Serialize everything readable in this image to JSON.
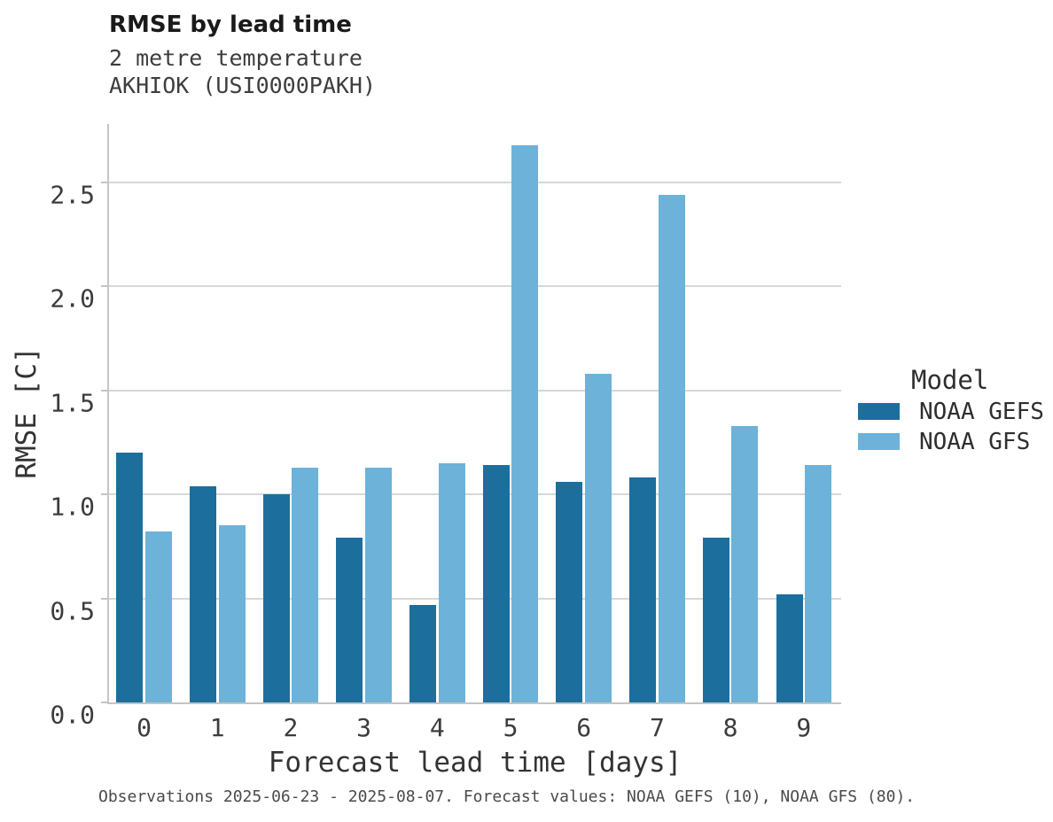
{
  "header": {
    "title": "RMSE by lead time",
    "subtitle_line1": "2 metre temperature",
    "subtitle_line2": "AKHIOK (USI0000PAKH)"
  },
  "chart_data": {
    "type": "bar",
    "title": "RMSE by lead time",
    "subtitle": "2 metre temperature — AKHIOK (USI0000PAKH)",
    "categories": [
      "0",
      "1",
      "2",
      "3",
      "4",
      "5",
      "6",
      "7",
      "8",
      "9"
    ],
    "series": [
      {
        "name": "NOAA GEFS",
        "color": "#1C6E9D",
        "values": [
          1.2,
          1.04,
          1.0,
          0.79,
          0.47,
          1.14,
          1.06,
          1.08,
          0.79,
          0.52
        ]
      },
      {
        "name": "NOAA GFS",
        "color": "#6CB2D9",
        "values": [
          0.82,
          0.85,
          1.13,
          1.13,
          1.15,
          2.68,
          1.58,
          2.44,
          1.33,
          1.14
        ]
      }
    ],
    "xlabel": "Forecast lead time [days]",
    "ylabel": "RMSE [C]",
    "ylim": [
      0,
      2.78
    ],
    "yticks": [
      0.0,
      0.5,
      1.0,
      1.5,
      2.0,
      2.5
    ],
    "grid": true,
    "legend_position": "right"
  },
  "legend": {
    "title": "Model",
    "items": [
      {
        "label": "NOAA GEFS",
        "color": "#1C6E9D"
      },
      {
        "label": "NOAA GFS",
        "color": "#6CB2D9"
      }
    ]
  },
  "footer": {
    "note": "Observations 2025-06-23 - 2025-08-07. Forecast values: NOAA GEFS (10), NOAA GFS (80)."
  },
  "colors": {
    "gridline": "#d7d7d7",
    "axis": "#c4c4c4",
    "title_text": "#1a1a1a",
    "body_text": "#3c3c3c"
  }
}
